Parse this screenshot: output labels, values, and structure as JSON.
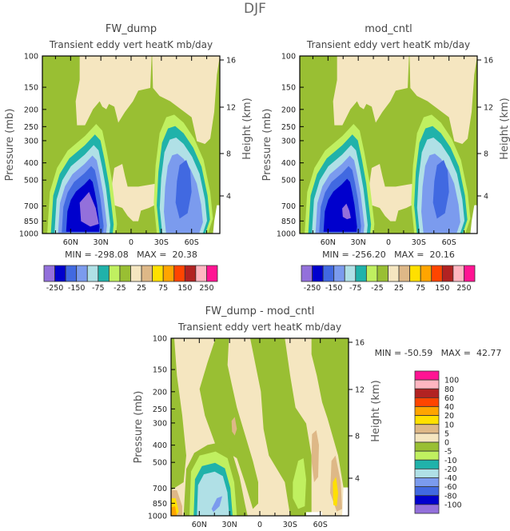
{
  "figure": {
    "title": "DJF"
  },
  "colors": {
    "purple": "#9370DB",
    "mediumblue": "#0000CD",
    "royalblue": "#4169E1",
    "cornflower": "#7B9BEE",
    "powderblue": "#B0E0E6",
    "teal": "#20B2AA",
    "lightgreen": "#C0F060",
    "yellowgreen": "#99BF33",
    "wheat": "#F5E6C0",
    "burlywood": "#DEB887",
    "gold": "#FFE000",
    "orange": "#FFA500",
    "orangered": "#FF4500",
    "firebrick": "#B22222",
    "pink": "#FFB6C1",
    "deeppink": "#FF1493"
  },
  "chart_data": [
    {
      "type": "heatmap",
      "title": "FW_dump",
      "subtitle": "Transient eddy vert heatK mb/day",
      "ylabel": "Pressure (mb)",
      "y2label": "Height (km)",
      "yticks": [
        "100",
        "150",
        "200",
        "250",
        "300",
        "400",
        "500",
        "700",
        "850",
        "1000"
      ],
      "y2ticks": [
        "16",
        "12",
        "8",
        "4"
      ],
      "xticks": [
        "60N",
        "30N",
        "0",
        "30S",
        "60S"
      ],
      "stats": "MIN = -298.08   MAX =  20.38",
      "colorbar_labels": [
        "-250",
        "-150",
        "-75",
        "-25",
        "25",
        "75",
        "150",
        "250"
      ]
    },
    {
      "type": "heatmap",
      "title": "mod_cntl",
      "subtitle": "Transient eddy vert heatK mb/day",
      "ylabel": "Pressure (mb)",
      "y2label": "Height (km)",
      "yticks": [
        "100",
        "150",
        "200",
        "250",
        "300",
        "400",
        "500",
        "700",
        "850",
        "1000"
      ],
      "y2ticks": [
        "16",
        "12",
        "8",
        "4"
      ],
      "xticks": [
        "60N",
        "30N",
        "0",
        "30S",
        "60S"
      ],
      "stats": "MIN = -256.20   MAX =  20.16",
      "colorbar_labels": [
        "-250",
        "-150",
        "-75",
        "-25",
        "25",
        "75",
        "150",
        "250"
      ]
    },
    {
      "type": "heatmap",
      "title": "FW_dump - mod_cntl",
      "subtitle": "Transient eddy vert heatK mb/day",
      "ylabel": "Pressure (mb)",
      "y2label": "Height (km)",
      "yticks": [
        "100",
        "150",
        "200",
        "250",
        "300",
        "400",
        "500",
        "700",
        "850",
        "1000"
      ],
      "y2ticks": [
        "16",
        "12",
        "8",
        "4"
      ],
      "xticks": [
        "60N",
        "30N",
        "0",
        "30S",
        "60S"
      ],
      "stats": "MIN = -50.59   MAX =  42.77",
      "colorbar_labels": [
        "100",
        "80",
        "60",
        "40",
        "20",
        "10",
        "5",
        "0",
        "-5",
        "-10",
        "-20",
        "-40",
        "-60",
        "-80",
        "-100"
      ]
    }
  ]
}
